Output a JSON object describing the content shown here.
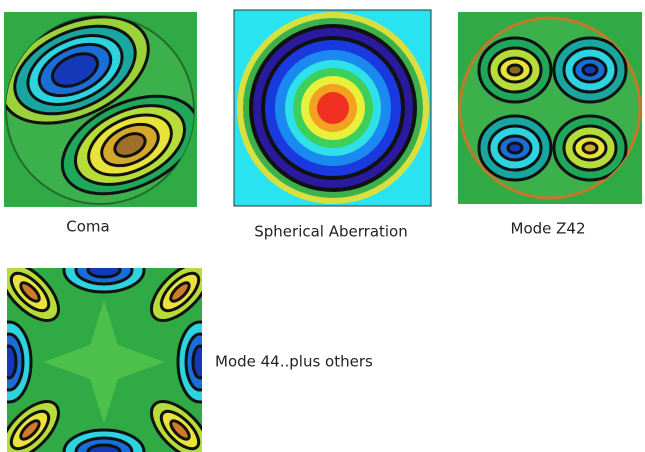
{
  "panels": [
    {
      "caption": "Coma"
    },
    {
      "caption": "Spherical Aberration"
    },
    {
      "caption": "Mode Z42"
    },
    {
      "caption": "Mode 44..plus others"
    }
  ]
}
